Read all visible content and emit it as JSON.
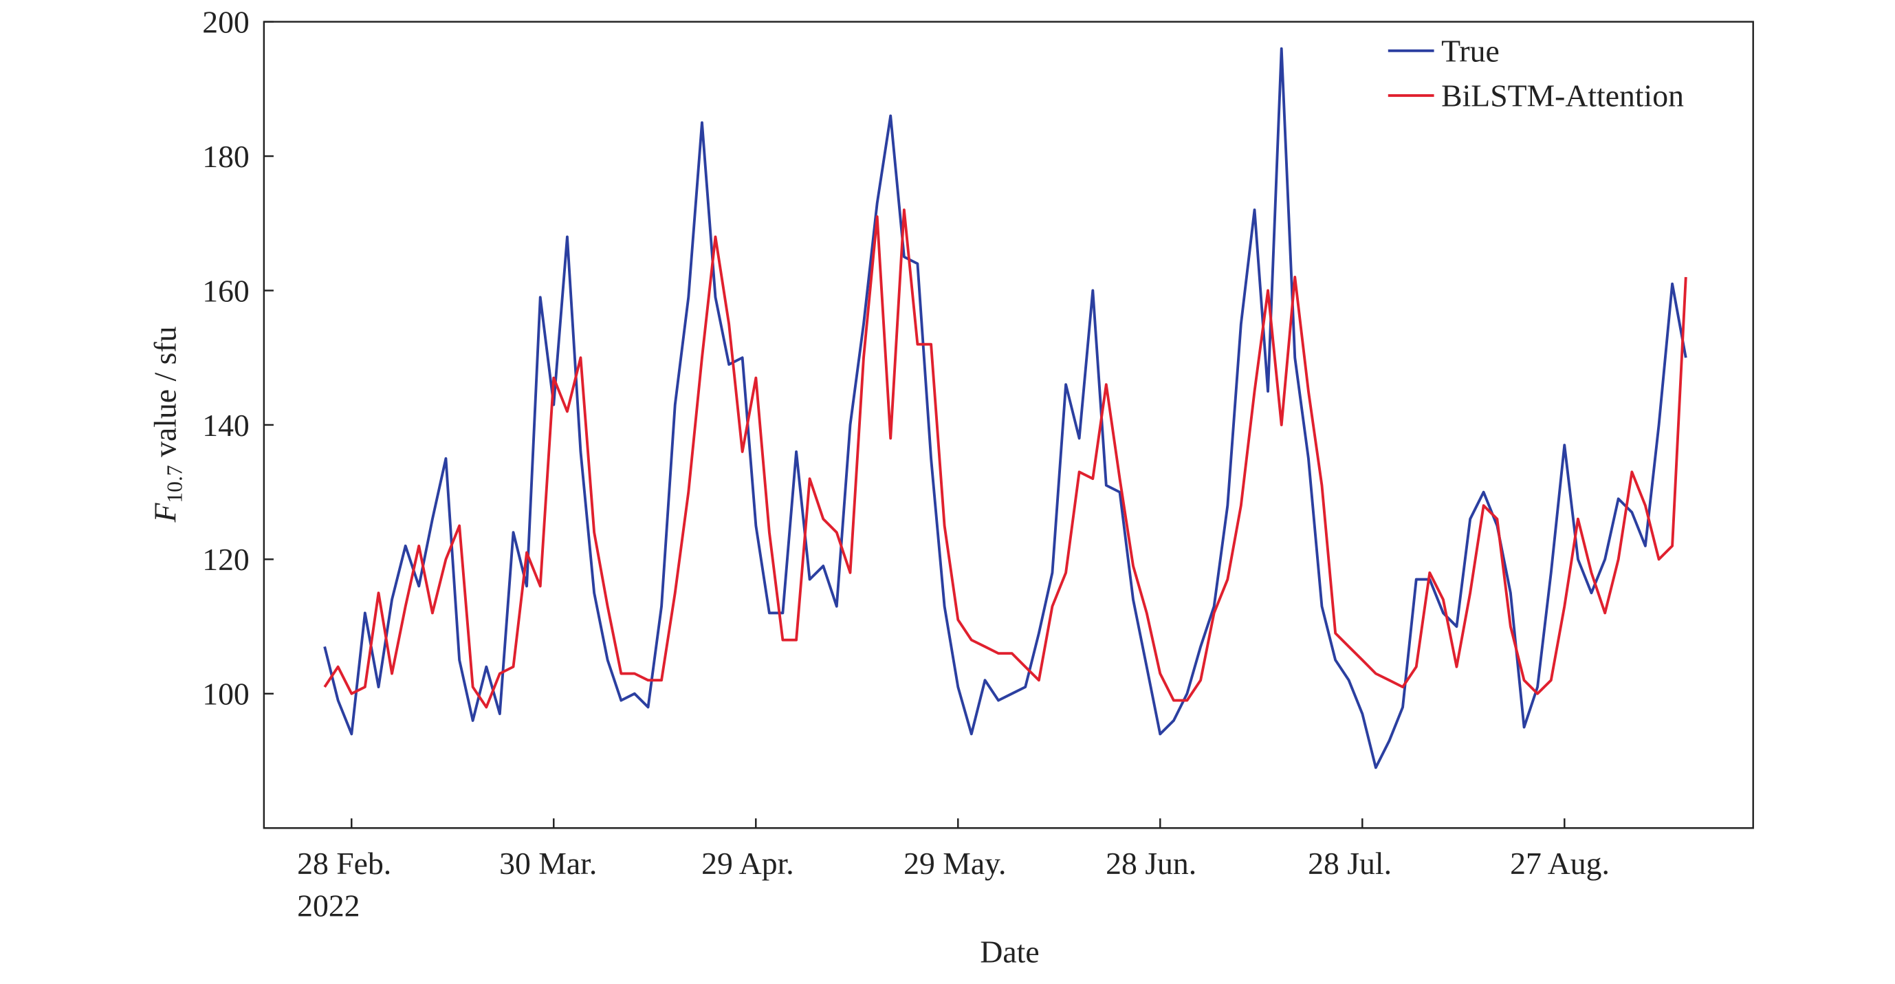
{
  "chart_data": {
    "type": "line",
    "y_label": {
      "symbol": "F",
      "subscript": "10.7",
      "text": " value / sfu"
    },
    "x_label": "Date",
    "x": [
      "2022-02-24",
      "2022-02-26",
      "2022-02-28",
      "2022-03-02",
      "2022-03-04",
      "2022-03-06",
      "2022-03-08",
      "2022-03-10",
      "2022-03-12",
      "2022-03-14",
      "2022-03-16",
      "2022-03-18",
      "2022-03-20",
      "2022-03-22",
      "2022-03-24",
      "2022-03-26",
      "2022-03-28",
      "2022-03-30",
      "2022-04-01",
      "2022-04-03",
      "2022-04-05",
      "2022-04-07",
      "2022-04-09",
      "2022-04-11",
      "2022-04-13",
      "2022-04-15",
      "2022-04-17",
      "2022-04-19",
      "2022-04-21",
      "2022-04-23",
      "2022-04-25",
      "2022-04-27",
      "2022-04-29",
      "2022-05-01",
      "2022-05-03",
      "2022-05-05",
      "2022-05-07",
      "2022-05-09",
      "2022-05-11",
      "2022-05-13",
      "2022-05-15",
      "2022-05-17",
      "2022-05-19",
      "2022-05-21",
      "2022-05-23",
      "2022-05-25",
      "2022-05-27",
      "2022-05-29",
      "2022-05-31",
      "2022-06-02",
      "2022-06-04",
      "2022-06-06",
      "2022-06-08",
      "2022-06-10",
      "2022-06-12",
      "2022-06-14",
      "2022-06-16",
      "2022-06-18",
      "2022-06-20",
      "2022-06-22",
      "2022-06-24",
      "2022-06-26",
      "2022-06-28",
      "2022-06-30",
      "2022-07-02",
      "2022-07-04",
      "2022-07-06",
      "2022-07-08",
      "2022-07-10",
      "2022-07-12",
      "2022-07-14",
      "2022-07-16",
      "2022-07-18",
      "2022-07-20",
      "2022-07-22",
      "2022-07-24",
      "2022-07-26",
      "2022-07-28",
      "2022-07-30",
      "2022-08-01",
      "2022-08-03",
      "2022-08-05",
      "2022-08-07",
      "2022-08-09",
      "2022-08-11",
      "2022-08-13",
      "2022-08-15",
      "2022-08-17",
      "2022-08-19",
      "2022-08-21",
      "2022-08-23",
      "2022-08-25",
      "2022-08-27",
      "2022-08-29",
      "2022-08-31",
      "2022-09-02",
      "2022-09-04",
      "2022-09-06",
      "2022-09-08",
      "2022-09-10",
      "2022-09-12",
      "2022-09-14"
    ],
    "series": [
      {
        "name": "True",
        "color": "#2b3fa0",
        "values": [
          107,
          99,
          94,
          112,
          101,
          114,
          122,
          116,
          126,
          135,
          105,
          96,
          104,
          97,
          124,
          116,
          159,
          143,
          168,
          136,
          115,
          105,
          99,
          100,
          98,
          113,
          143,
          159,
          185,
          159,
          149,
          150,
          125,
          112,
          112,
          136,
          117,
          119,
          113,
          140,
          155,
          173,
          186,
          165,
          164,
          135,
          113,
          101,
          94,
          102,
          99,
          100,
          101,
          109,
          118,
          146,
          138,
          160,
          131,
          130,
          114,
          104,
          94,
          96,
          100,
          107,
          113,
          128,
          155,
          172,
          145,
          196,
          150,
          135,
          113,
          105,
          102,
          97,
          89,
          93,
          98,
          117,
          117,
          112,
          110,
          126,
          130,
          125,
          115,
          95,
          101,
          118,
          137,
          120,
          115,
          120,
          129,
          127,
          122,
          140,
          161,
          150
        ]
      },
      {
        "name": "BiLSTM-Attention",
        "color": "#e0202e",
        "values": [
          101,
          104,
          100,
          101,
          115,
          103,
          113,
          122,
          112,
          120,
          125,
          101,
          98,
          103,
          104,
          121,
          116,
          147,
          142,
          150,
          124,
          113,
          103,
          103,
          102,
          102,
          115,
          130,
          150,
          168,
          155,
          136,
          147,
          124,
          108,
          108,
          132,
          126,
          124,
          118,
          150,
          171,
          138,
          172,
          152,
          152,
          125,
          111,
          108,
          107,
          106,
          106,
          104,
          102,
          113,
          118,
          133,
          132,
          146,
          132,
          119,
          112,
          103,
          99,
          99,
          102,
          112,
          117,
          128,
          145,
          160,
          140,
          162,
          145,
          131,
          109,
          107,
          105,
          103,
          102,
          101,
          104,
          118,
          114,
          104,
          115,
          128,
          126,
          110,
          102,
          100,
          102,
          113,
          126,
          118,
          112,
          120,
          133,
          128,
          120,
          122,
          162
        ]
      }
    ],
    "xlim": [
      "2022-02-15",
      "2022-09-24"
    ],
    "xticks": [
      {
        "value": "2022-02-28",
        "label": "28 Feb.\n2022"
      },
      {
        "value": "2022-03-30",
        "label": "30 Mar."
      },
      {
        "value": "2022-04-29",
        "label": "29 Apr."
      },
      {
        "value": "2022-05-29",
        "label": "29 May."
      },
      {
        "value": "2022-06-28",
        "label": "28 Jun."
      },
      {
        "value": "2022-07-28",
        "label": "28 Jul."
      },
      {
        "value": "2022-08-27",
        "label": "27 Aug."
      }
    ],
    "ylim": [
      80,
      200
    ],
    "yticks": [
      100,
      120,
      140,
      160,
      180,
      200
    ],
    "legend": "upper right",
    "grid": false
  }
}
